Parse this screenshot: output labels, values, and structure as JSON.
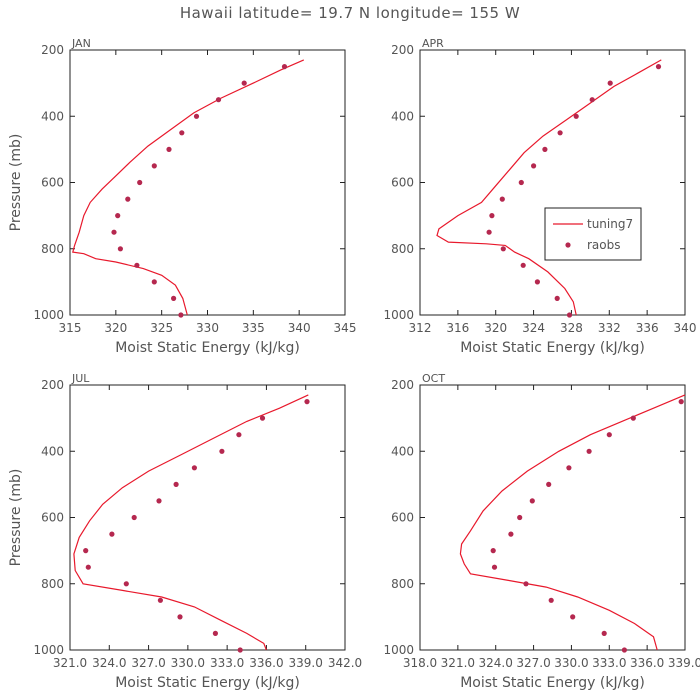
{
  "page_title": "Hawaii  latitude= 19.7 N longitude= 155 W",
  "colors": {
    "model": "#e8192c",
    "obs": "#b5284f",
    "axis": "#222222",
    "text": "#555555"
  },
  "chart_data": [
    {
      "type": "line",
      "panel_label": "JAN",
      "xlabel": "Moist Static Energy (kJ/kg)",
      "ylabel": "Pressure (mb)",
      "xlim": [
        315,
        345
      ],
      "ylim": [
        1000,
        200
      ],
      "x_ticks": [
        "315",
        "320",
        "325",
        "330",
        "335",
        "340",
        "345"
      ],
      "y_ticks": [
        "200",
        "400",
        "600",
        "800",
        "1000"
      ],
      "series": [
        {
          "style": "line",
          "values": [
            [
              340.5,
              230
            ],
            [
              338,
              260
            ],
            [
              335,
              300
            ],
            [
              331.5,
              345
            ],
            [
              328.5,
              390
            ],
            [
              326,
              440
            ],
            [
              323.5,
              490
            ],
            [
              321.5,
              540
            ],
            [
              320,
              580
            ],
            [
              318.5,
              620
            ],
            [
              317.2,
              660
            ],
            [
              316.5,
              700
            ],
            [
              316,
              750
            ],
            [
              315.5,
              790
            ],
            [
              315.3,
              810
            ],
            [
              316.5,
              815
            ],
            [
              317.8,
              830
            ],
            [
              320,
              840
            ],
            [
              323,
              860
            ],
            [
              325,
              880
            ],
            [
              326.5,
              910
            ],
            [
              327.3,
              950
            ],
            [
              327.8,
              1000
            ]
          ]
        },
        {
          "style": "markers",
          "values": [
            [
              338.4,
              250
            ],
            [
              334,
              300
            ],
            [
              331.2,
              350
            ],
            [
              328.8,
              400
            ],
            [
              327.2,
              450
            ],
            [
              325.8,
              500
            ],
            [
              324.2,
              550
            ],
            [
              322.6,
              600
            ],
            [
              321.3,
              650
            ],
            [
              320.2,
              700
            ],
            [
              319.8,
              750
            ],
            [
              320.5,
              800
            ],
            [
              322.3,
              850
            ],
            [
              324.2,
              900
            ],
            [
              326.3,
              950
            ],
            [
              327.1,
              1000
            ]
          ]
        }
      ]
    },
    {
      "type": "line",
      "panel_label": "APR",
      "xlabel": "Moist Static Energy (kJ/kg)",
      "ylabel": "",
      "xlim": [
        312,
        340
      ],
      "ylim": [
        1000,
        200
      ],
      "x_ticks": [
        "312",
        "316",
        "320",
        "324",
        "328",
        "332",
        "336",
        "340"
      ],
      "y_ticks": [
        "200",
        "400",
        "600",
        "800",
        "1000"
      ],
      "legend": {
        "position": "right-middle",
        "entries": [
          "tuning7",
          "raobs"
        ]
      },
      "series": [
        {
          "name": "tuning7",
          "style": "line",
          "values": [
            [
              337.5,
              230
            ],
            [
              335,
              270
            ],
            [
              332.5,
              310
            ],
            [
              330,
              360
            ],
            [
              327.5,
              410
            ],
            [
              325,
              460
            ],
            [
              323,
              510
            ],
            [
              321.5,
              560
            ],
            [
              320,
              610
            ],
            [
              318.5,
              660
            ],
            [
              316,
              700
            ],
            [
              314,
              740
            ],
            [
              313.8,
              760
            ],
            [
              315,
              780
            ],
            [
              319,
              785
            ],
            [
              321,
              790
            ],
            [
              322,
              810
            ],
            [
              323.5,
              830
            ],
            [
              325.5,
              870
            ],
            [
              327.3,
              920
            ],
            [
              328.2,
              960
            ],
            [
              328.5,
              1000
            ]
          ]
        },
        {
          "name": "raobs",
          "style": "markers",
          "values": [
            [
              337.2,
              250
            ],
            [
              332.1,
              300
            ],
            [
              330.2,
              350
            ],
            [
              328.5,
              400
            ],
            [
              326.8,
              450
            ],
            [
              325.2,
              500
            ],
            [
              324,
              550
            ],
            [
              322.7,
              600
            ],
            [
              320.7,
              650
            ],
            [
              319.6,
              700
            ],
            [
              319.3,
              750
            ],
            [
              320.8,
              800
            ],
            [
              322.9,
              850
            ],
            [
              324.4,
              900
            ],
            [
              326.5,
              950
            ],
            [
              327.8,
              1000
            ]
          ]
        }
      ]
    },
    {
      "type": "line",
      "panel_label": "JUL",
      "xlabel": "Moist Static Energy (kJ/kg)",
      "ylabel": "Pressure (mb)",
      "xlim": [
        321.0,
        342.0
      ],
      "ylim": [
        1000,
        200
      ],
      "x_ticks": [
        "321.0",
        "324.0",
        "327.0",
        "330.0",
        "333.0",
        "336.0",
        "339.0",
        "342.0"
      ],
      "y_ticks": [
        "200",
        "400",
        "600",
        "800",
        "1000"
      ],
      "series": [
        {
          "style": "line",
          "values": [
            [
              339.2,
              230
            ],
            [
              337,
              270
            ],
            [
              334.5,
              310
            ],
            [
              332,
              360
            ],
            [
              329.5,
              410
            ],
            [
              327,
              460
            ],
            [
              325,
              510
            ],
            [
              323.5,
              560
            ],
            [
              322.5,
              610
            ],
            [
              321.7,
              660
            ],
            [
              321.3,
              710
            ],
            [
              321.4,
              760
            ],
            [
              322,
              800
            ],
            [
              325,
              820
            ],
            [
              328,
              840
            ],
            [
              330.5,
              870
            ],
            [
              332.5,
              910
            ],
            [
              334.5,
              950
            ],
            [
              335.8,
              980
            ],
            [
              336,
              1000
            ]
          ]
        },
        {
          "style": "markers",
          "values": [
            [
              339.1,
              250
            ],
            [
              335.7,
              300
            ],
            [
              333.9,
              350
            ],
            [
              332.6,
              400
            ],
            [
              330.5,
              450
            ],
            [
              329.1,
              500
            ],
            [
              327.8,
              550
            ],
            [
              325.9,
              600
            ],
            [
              324.2,
              650
            ],
            [
              322.2,
              700
            ],
            [
              322.4,
              750
            ],
            [
              325.3,
              800
            ],
            [
              327.9,
              850
            ],
            [
              329.4,
              900
            ],
            [
              332.1,
              950
            ],
            [
              334,
              1000
            ]
          ]
        }
      ]
    },
    {
      "type": "line",
      "panel_label": "OCT",
      "xlabel": "Moist Static Energy (kJ/kg)",
      "ylabel": "",
      "xlim": [
        318.0,
        339.0
      ],
      "ylim": [
        1000,
        200
      ],
      "x_ticks": [
        "318.0",
        "321.0",
        "324.0",
        "327.0",
        "330.0",
        "333.0",
        "336.0",
        "339.0"
      ],
      "y_ticks": [
        "200",
        "400",
        "600",
        "800",
        "1000"
      ],
      "series": [
        {
          "style": "line",
          "values": [
            [
              339,
              230
            ],
            [
              336.5,
              270
            ],
            [
              334,
              310
            ],
            [
              331.5,
              350
            ],
            [
              329,
              400
            ],
            [
              326.5,
              460
            ],
            [
              324.5,
              520
            ],
            [
              323,
              580
            ],
            [
              322,
              640
            ],
            [
              321.3,
              680
            ],
            [
              321.2,
              710
            ],
            [
              321.5,
              740
            ],
            [
              322,
              770
            ],
            [
              325,
              790
            ],
            [
              328,
              810
            ],
            [
              330.5,
              840
            ],
            [
              333,
              880
            ],
            [
              335,
              920
            ],
            [
              336.5,
              960
            ],
            [
              336.8,
              1000
            ]
          ]
        },
        {
          "style": "markers",
          "values": [
            [
              338.7,
              250
            ],
            [
              334.9,
              300
            ],
            [
              333,
              350
            ],
            [
              331.4,
              400
            ],
            [
              329.8,
              450
            ],
            [
              328.2,
              500
            ],
            [
              326.9,
              550
            ],
            [
              325.9,
              600
            ],
            [
              325.2,
              650
            ],
            [
              323.8,
              700
            ],
            [
              323.9,
              750
            ],
            [
              326.4,
              800
            ],
            [
              328.4,
              850
            ],
            [
              330.1,
              900
            ],
            [
              332.6,
              950
            ],
            [
              334.2,
              1000
            ]
          ]
        }
      ]
    }
  ]
}
